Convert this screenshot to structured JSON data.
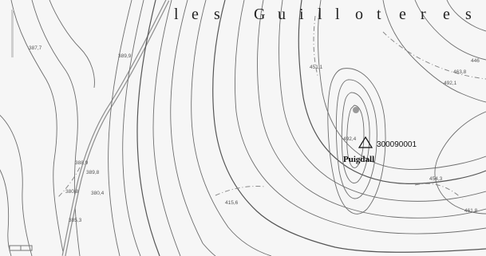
{
  "map": {
    "place_name_letters": [
      "l",
      "e",
      "s",
      "G",
      "u",
      "i",
      "l",
      "l",
      "o",
      "t",
      "e",
      "r",
      "e",
      "s"
    ],
    "peak": {
      "name": "Puigdall",
      "code": "300090001",
      "elevation": "492,4"
    },
    "spot_heights": [
      "387,7",
      "389,9",
      "451,1",
      "446",
      "463,8",
      "492,1",
      "388,9",
      "389,8",
      "380,8",
      "380,4",
      "385,3",
      "415,6",
      "454,3",
      "461,8"
    ]
  }
}
